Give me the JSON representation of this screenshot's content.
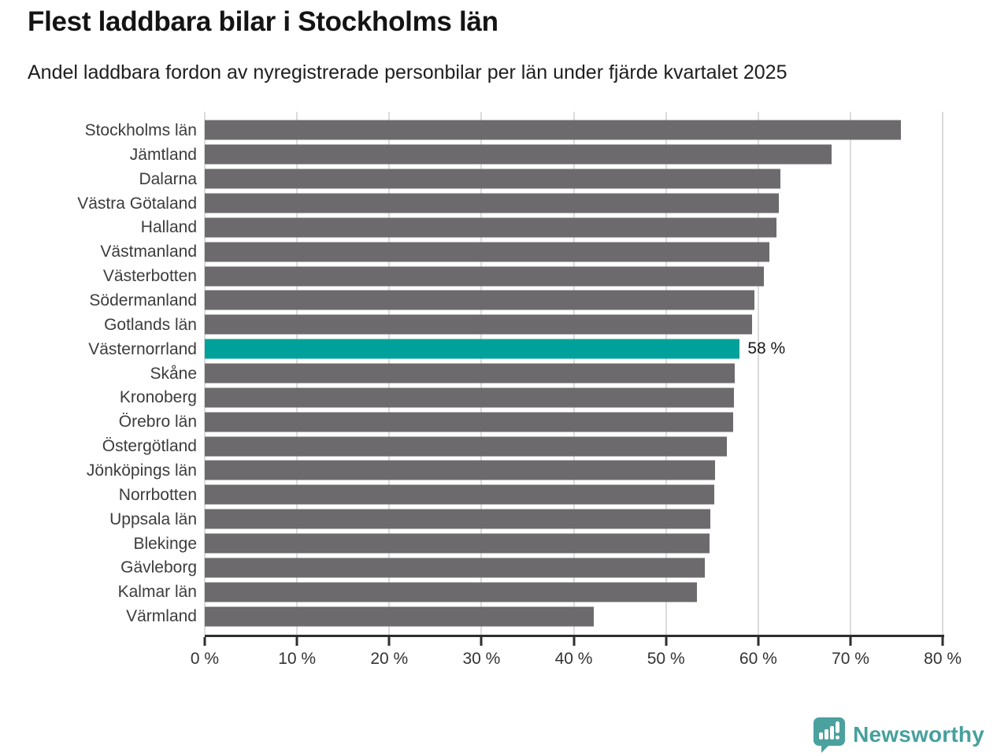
{
  "header": {
    "title": "Flest laddbara bilar i Stockholms län",
    "subtitle": "Andel laddbara fordon av nyregistrerade personbilar per län under fjärde kvartalet 2025"
  },
  "chart_data": {
    "type": "bar",
    "orientation": "horizontal",
    "title": "Flest laddbara bilar i Stockholms län",
    "subtitle": "Andel laddbara fordon av nyregistrerade personbilar per län under fjärde kvartalet 2025",
    "categories": [
      "Stockholms län",
      "Jämtland",
      "Dalarna",
      "Västra Götaland",
      "Halland",
      "Västmanland",
      "Västerbotten",
      "Södermanland",
      "Gotlands län",
      "Västernorrland",
      "Skåne",
      "Kronoberg",
      "Örebro län",
      "Östergötland",
      "Jönköpings län",
      "Norrbotten",
      "Uppsala län",
      "Blekinge",
      "Gävleborg",
      "Kalmar län",
      "Värmland"
    ],
    "values": [
      75.5,
      68,
      62.4,
      62.2,
      62,
      61.2,
      60.6,
      59.6,
      59.3,
      58,
      57.5,
      57.4,
      57.3,
      56.6,
      55.3,
      55.2,
      54.8,
      54.7,
      54.2,
      53.4,
      42.2
    ],
    "highlight": {
      "index": 9,
      "category": "Västernorrland",
      "label": "58 %"
    },
    "xlim": [
      0,
      80
    ],
    "x_ticks": [
      "0 %",
      "10 %",
      "20 %",
      "30 %",
      "40 %",
      "50 %",
      "60 %",
      "70 %",
      "80 %"
    ],
    "grid": true,
    "legend": "none"
  },
  "colors": {
    "bar": "#6d6a6e",
    "highlight": "#00a19a",
    "grid": "#dcdcdc",
    "axis": "#2e2e2e",
    "logo": "#4aa19e"
  },
  "footer": {
    "brand": "Newsworthy"
  }
}
